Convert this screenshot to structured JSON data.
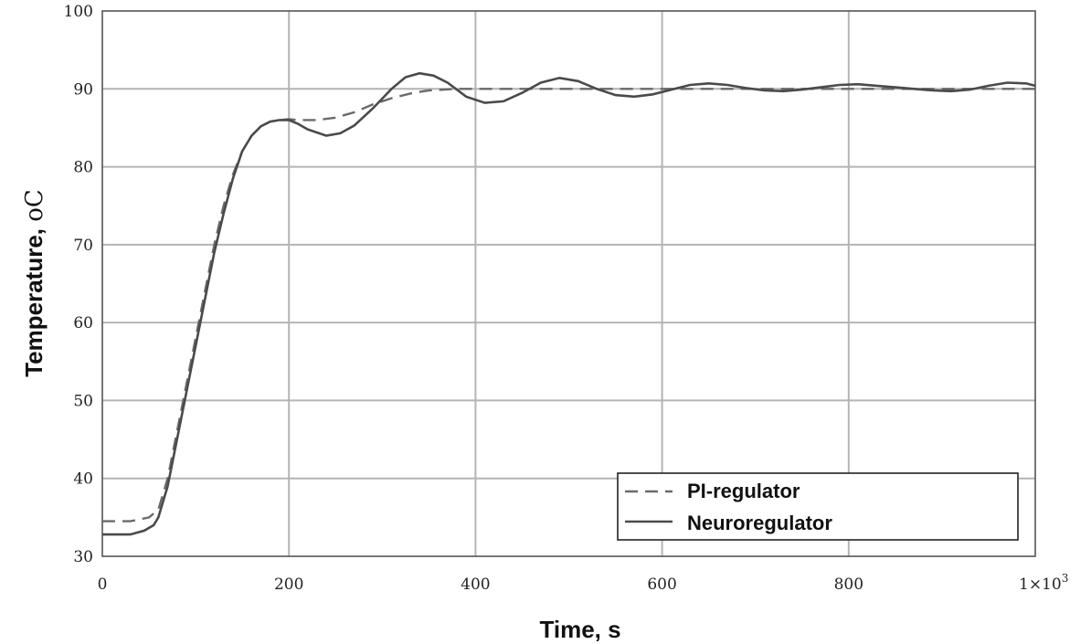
{
  "chart_data": {
    "type": "line",
    "xlabel": "Time, s",
    "ylabel": "Temperature, ",
    "ylabel_unit": "oC",
    "xlim": [
      0,
      1000
    ],
    "ylim": [
      30,
      100
    ],
    "x_ticks": [
      "0",
      "200",
      "400",
      "600",
      "800"
    ],
    "x_multiplier_label": "1×10",
    "x_multiplier_exp": "3",
    "y_ticks": [
      "30",
      "40",
      "50",
      "60",
      "70",
      "80",
      "90",
      "100"
    ],
    "grid": true,
    "legend_position": "bottom-right",
    "series": [
      {
        "name": "PI-regulator",
        "style": "dashed",
        "color": "#6b6b6b",
        "points": [
          [
            0,
            34.5
          ],
          [
            30,
            34.5
          ],
          [
            50,
            35
          ],
          [
            60,
            36
          ],
          [
            70,
            40
          ],
          [
            80,
            46
          ],
          [
            90,
            52
          ],
          [
            100,
            58
          ],
          [
            110,
            64
          ],
          [
            120,
            70
          ],
          [
            130,
            75
          ],
          [
            140,
            79
          ],
          [
            150,
            82
          ],
          [
            160,
            84
          ],
          [
            170,
            85.2
          ],
          [
            180,
            85.8
          ],
          [
            190,
            86
          ],
          [
            200,
            86.1
          ],
          [
            210,
            86
          ],
          [
            230,
            86
          ],
          [
            250,
            86.3
          ],
          [
            270,
            87
          ],
          [
            290,
            88
          ],
          [
            310,
            88.8
          ],
          [
            330,
            89.4
          ],
          [
            350,
            89.8
          ],
          [
            380,
            90
          ],
          [
            400,
            90
          ],
          [
            500,
            90
          ],
          [
            600,
            90
          ],
          [
            700,
            90
          ],
          [
            800,
            90
          ],
          [
            900,
            90
          ],
          [
            1000,
            90
          ]
        ]
      },
      {
        "name": "Neuroregulator",
        "style": "solid",
        "color": "#4a4a4a",
        "points": [
          [
            0,
            32.8
          ],
          [
            30,
            32.8
          ],
          [
            45,
            33.3
          ],
          [
            55,
            34
          ],
          [
            60,
            35
          ],
          [
            70,
            39
          ],
          [
            80,
            45
          ],
          [
            90,
            51
          ],
          [
            100,
            57
          ],
          [
            110,
            63
          ],
          [
            120,
            69
          ],
          [
            130,
            74
          ],
          [
            140,
            78.5
          ],
          [
            150,
            82
          ],
          [
            160,
            84
          ],
          [
            170,
            85.2
          ],
          [
            180,
            85.8
          ],
          [
            190,
            86
          ],
          [
            200,
            86
          ],
          [
            210,
            85.5
          ],
          [
            220,
            84.8
          ],
          [
            240,
            84
          ],
          [
            255,
            84.3
          ],
          [
            270,
            85.3
          ],
          [
            290,
            87.5
          ],
          [
            310,
            90
          ],
          [
            325,
            91.5
          ],
          [
            340,
            92
          ],
          [
            355,
            91.7
          ],
          [
            370,
            90.8
          ],
          [
            390,
            89
          ],
          [
            410,
            88.2
          ],
          [
            430,
            88.4
          ],
          [
            450,
            89.5
          ],
          [
            470,
            90.8
          ],
          [
            490,
            91.4
          ],
          [
            510,
            91
          ],
          [
            530,
            90
          ],
          [
            550,
            89.2
          ],
          [
            570,
            89
          ],
          [
            590,
            89.3
          ],
          [
            610,
            89.9
          ],
          [
            630,
            90.5
          ],
          [
            650,
            90.7
          ],
          [
            670,
            90.5
          ],
          [
            690,
            90.1
          ],
          [
            710,
            89.8
          ],
          [
            730,
            89.7
          ],
          [
            750,
            89.9
          ],
          [
            770,
            90.2
          ],
          [
            790,
            90.5
          ],
          [
            810,
            90.6
          ],
          [
            830,
            90.4
          ],
          [
            850,
            90.2
          ],
          [
            870,
            90
          ],
          [
            890,
            89.8
          ],
          [
            910,
            89.7
          ],
          [
            930,
            89.9
          ],
          [
            950,
            90.4
          ],
          [
            970,
            90.8
          ],
          [
            990,
            90.7
          ],
          [
            1000,
            90.4
          ]
        ]
      }
    ]
  }
}
